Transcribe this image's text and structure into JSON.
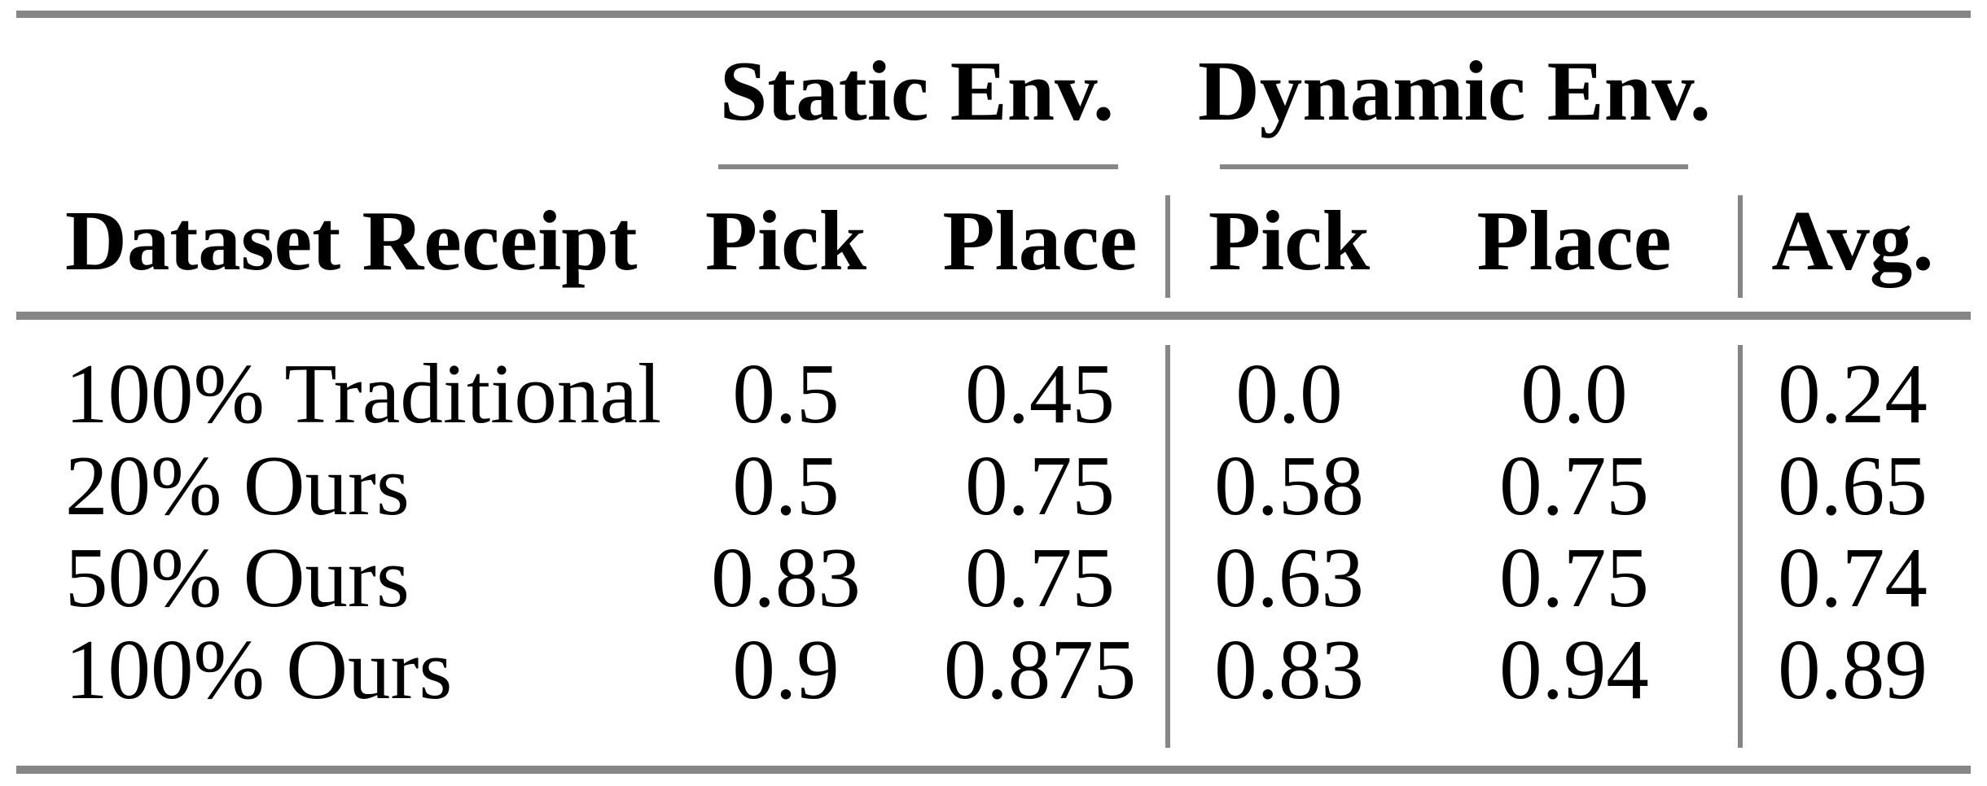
{
  "page": {
    "background_color": "#ffffff",
    "text_color": "#000000",
    "rule_color": "#868686"
  },
  "table": {
    "column_groups": [
      {
        "label": "Static Env.",
        "columns": [
          "Pick",
          "Place"
        ]
      },
      {
        "label": "Dynamic Env.",
        "columns": [
          "Pick",
          "Place"
        ]
      }
    ],
    "header": {
      "row_label": "Dataset Receipt",
      "avg": "Avg."
    },
    "rows": [
      {
        "label": "100% Traditional",
        "static_pick": "0.5",
        "static_place": "0.45",
        "dynamic_pick": "0.0",
        "dynamic_place": "0.0",
        "avg": "0.24"
      },
      {
        "label": "20% Ours",
        "static_pick": "0.5",
        "static_place": "0.75",
        "dynamic_pick": "0.58",
        "dynamic_place": "0.75",
        "avg": "0.65"
      },
      {
        "label": "50% Ours",
        "static_pick": "0.83",
        "static_place": "0.75",
        "dynamic_pick": "0.63",
        "dynamic_place": "0.75",
        "avg": "0.74"
      },
      {
        "label": "100% Ours",
        "static_pick": "0.9",
        "static_place": "0.875",
        "dynamic_pick": "0.83",
        "dynamic_place": "0.94",
        "avg": "0.89"
      }
    ]
  }
}
